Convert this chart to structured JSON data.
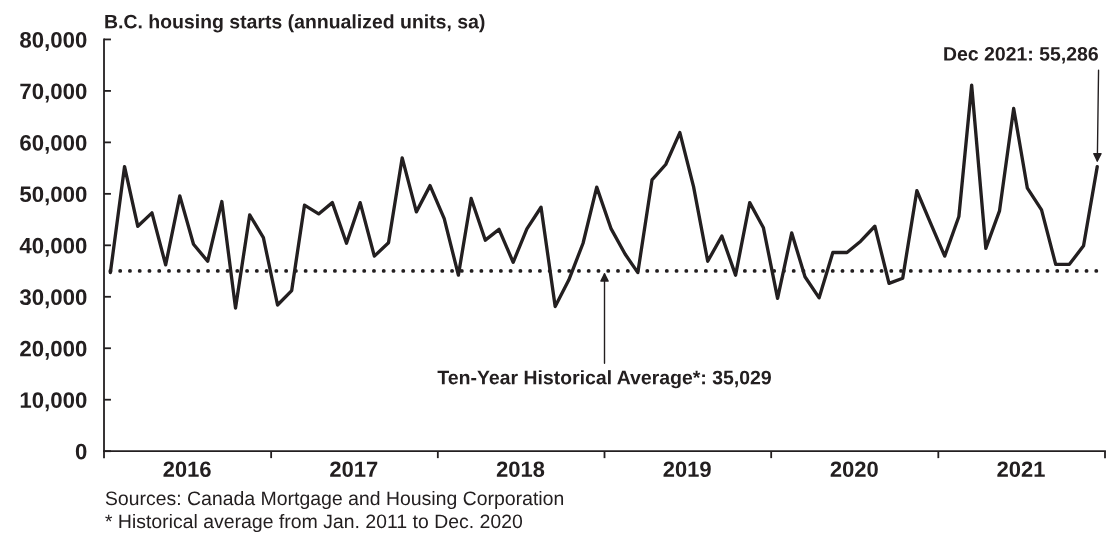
{
  "chart_data": {
    "type": "line",
    "title": "B.C. housing starts (annualized units, sa)",
    "x": [
      "2016-01-15",
      "2016-02-15",
      "2016-03-15",
      "2016-04-15",
      "2016-05-15",
      "2016-06-15",
      "2016-07-15",
      "2016-08-15",
      "2016-09-15",
      "2016-10-15",
      "2016-11-15",
      "2016-12-15",
      "2017-01-15",
      "2017-02-15",
      "2017-03-15",
      "2017-04-15",
      "2017-05-15",
      "2017-06-15",
      "2017-07-15",
      "2017-08-15",
      "2017-09-15",
      "2017-10-15",
      "2017-11-15",
      "2017-12-15",
      "2018-01-15",
      "2018-02-15",
      "2018-03-15",
      "2018-04-15",
      "2018-05-15",
      "2018-06-15",
      "2018-07-15",
      "2018-08-15",
      "2018-09-15",
      "2018-10-15",
      "2018-11-15",
      "2018-12-15",
      "2019-01-15",
      "2019-02-15",
      "2019-03-15",
      "2019-04-15",
      "2019-05-15",
      "2019-06-15",
      "2019-07-15",
      "2019-08-15",
      "2019-09-15",
      "2019-10-15",
      "2019-11-15",
      "2019-12-15",
      "2020-01-15",
      "2020-02-15",
      "2020-03-15",
      "2020-04-15",
      "2020-05-15",
      "2020-06-15",
      "2020-07-15",
      "2020-08-15",
      "2020-09-15",
      "2020-10-15",
      "2020-11-15",
      "2020-12-15",
      "2021-01-15",
      "2021-02-15",
      "2021-03-15",
      "2021-04-15",
      "2021-05-15",
      "2021-06-15",
      "2021-07-15",
      "2021-08-15",
      "2021-09-15",
      "2021-10-15",
      "2021-11-15",
      "2021-12-15"
    ],
    "series": [
      {
        "color": "#231f20",
        "values": [
          34700,
          55300,
          43700,
          46300,
          36200,
          49600,
          40200,
          36900,
          48500,
          27800,
          45900,
          41500,
          28400,
          31200,
          47800,
          46100,
          48300,
          40400,
          48300,
          37900,
          40500,
          57000,
          46500,
          51600,
          45200,
          34200,
          49100,
          41000,
          43100,
          36700,
          43200,
          47400,
          28100,
          33300,
          40400,
          51300,
          43300,
          38300,
          34700,
          52700,
          55700,
          61900,
          51400,
          36900,
          41800,
          34200,
          48300,
          43400,
          29700,
          42400,
          33900,
          29800,
          38600,
          38600,
          40800,
          43700,
          32600,
          33600,
          50600,
          44300,
          37900,
          45600,
          71100,
          39400,
          46700,
          66600,
          51100,
          46900,
          36300,
          36300,
          39900,
          55286
        ]
      }
    ],
    "xlim": [
      "2016-01-01",
      "2022-01-01"
    ],
    "xticks": [
      {
        "value": "2016-01-01",
        "label": null
      },
      {
        "value": "2016-07-01",
        "label": "2016"
      },
      {
        "value": "2017-01-01",
        "label": null
      },
      {
        "value": "2017-07-01",
        "label": "2017"
      },
      {
        "value": "2018-01-01",
        "label": null
      },
      {
        "value": "2018-07-01",
        "label": "2018"
      },
      {
        "value": "2019-01-01",
        "label": null
      },
      {
        "value": "2019-07-01",
        "label": "2019"
      },
      {
        "value": "2020-01-01",
        "label": null
      },
      {
        "value": "2020-07-01",
        "label": "2020"
      },
      {
        "value": "2021-01-01",
        "label": null
      },
      {
        "value": "2021-07-01",
        "label": "2021"
      },
      {
        "value": "2022-01-01",
        "label": null
      }
    ],
    "ylim": [
      0,
      80000
    ],
    "yticks": [
      0,
      {
        "value": 10000,
        "label": "10,000"
      },
      {
        "value": 20000,
        "label": "20,000"
      },
      {
        "value": 30000,
        "label": "30,000"
      },
      {
        "value": 40000,
        "label": "40,000"
      },
      {
        "value": 50000,
        "label": "50,000"
      },
      {
        "value": 60000,
        "label": "60,000"
      },
      {
        "value": 70000,
        "label": "70,000"
      },
      {
        "value": 80000,
        "label": "80,000"
      }
    ],
    "ref_lines": [
      {
        "axis": "y",
        "value": 35029,
        "color": "#231f20",
        "line_style": "dotted"
      }
    ],
    "annotations": [
      {
        "text": "Ten-Year Historical Average*: 35,029",
        "x": "2019-01-01",
        "y": 35029
      },
      {
        "text": "Dec 2021: 55,286",
        "x": "2021-12-15",
        "y": 55286
      },
      "Sources: Canada Mortgage and Housing Corporation",
      "* Historical average from Jan. 2011 to Dec. 2020"
    ]
  }
}
